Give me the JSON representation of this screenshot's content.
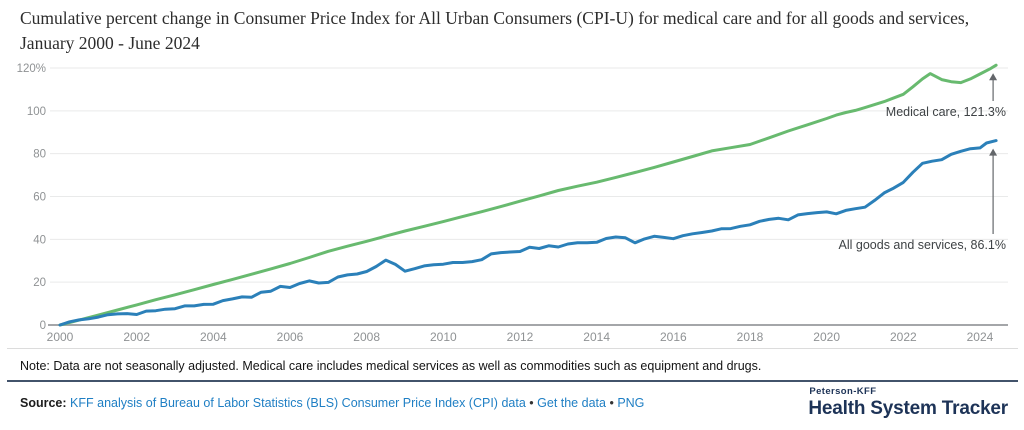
{
  "page_title": "Cumulative percent change in Consumer Price Index for All Urban Consumers (CPI-U) for medical care and for all goods and services, January 2000 - June 2024",
  "chart_data": {
    "type": "line",
    "title": "Cumulative percent change in Consumer Price Index for All Urban Consumers (CPI-U) for medical care and for all goods and services, January 2000 - June 2024",
    "xlim": [
      2000,
      2024.75
    ],
    "ylim": [
      0,
      125
    ],
    "grid": true,
    "legend_position": "end-of-line annotations",
    "x_ticks": [
      2000,
      2002,
      2004,
      2006,
      2008,
      2010,
      2012,
      2014,
      2016,
      2018,
      2020,
      2022,
      2024
    ],
    "y_tick_values": [
      0,
      20,
      40,
      60,
      80,
      100,
      120
    ],
    "y_tick_labels": [
      "0",
      "20",
      "40",
      "60",
      "80",
      "100",
      "120%"
    ],
    "series": [
      {
        "name": "Medical care",
        "color": "#68ba6f",
        "annotation": "Medical care, 121.3%",
        "end_value": 121.3,
        "points": [
          [
            2000,
            0
          ],
          [
            2000.5,
            2.3
          ],
          [
            2001,
            4.6
          ],
          [
            2001.5,
            7.0
          ],
          [
            2002,
            9.4
          ],
          [
            2002.5,
            11.8
          ],
          [
            2003,
            14.1
          ],
          [
            2003.5,
            16.5
          ],
          [
            2004,
            18.9
          ],
          [
            2004.5,
            21.3
          ],
          [
            2005,
            23.7
          ],
          [
            2005.5,
            26.2
          ],
          [
            2006,
            28.7
          ],
          [
            2006.5,
            31.5
          ],
          [
            2007,
            34.4
          ],
          [
            2007.5,
            36.8
          ],
          [
            2008,
            39.1
          ],
          [
            2008.5,
            41.5
          ],
          [
            2009,
            43.9
          ],
          [
            2009.5,
            46.1
          ],
          [
            2010,
            48.3
          ],
          [
            2010.5,
            50.6
          ],
          [
            2011,
            52.9
          ],
          [
            2011.5,
            55.3
          ],
          [
            2012,
            57.8
          ],
          [
            2012.5,
            60.3
          ],
          [
            2013,
            62.8
          ],
          [
            2013.5,
            64.8
          ],
          [
            2014,
            66.7
          ],
          [
            2014.5,
            68.9
          ],
          [
            2015,
            71.2
          ],
          [
            2015.5,
            73.6
          ],
          [
            2016,
            76.1
          ],
          [
            2016.5,
            78.7
          ],
          [
            2017,
            81.3
          ],
          [
            2017.5,
            82.8
          ],
          [
            2018,
            84.3
          ],
          [
            2018.5,
            87.4
          ],
          [
            2019,
            90.6
          ],
          [
            2019.5,
            93.5
          ],
          [
            2020,
            96.4
          ],
          [
            2020.25,
            98.0
          ],
          [
            2020.5,
            99.2
          ],
          [
            2020.75,
            100.2
          ],
          [
            2021,
            101.5
          ],
          [
            2021.5,
            104.3
          ],
          [
            2022,
            107.7
          ],
          [
            2022.25,
            111.2
          ],
          [
            2022.5,
            114.9
          ],
          [
            2022.7,
            117.4
          ],
          [
            2023,
            114.6
          ],
          [
            2023.25,
            113.6
          ],
          [
            2023.5,
            113.2
          ],
          [
            2023.75,
            114.9
          ],
          [
            2024,
            117.2
          ],
          [
            2024.25,
            119.5
          ],
          [
            2024.42,
            121.3
          ]
        ]
      },
      {
        "name": "All goods and services",
        "color": "#2b80b9",
        "annotation": "All goods and services, 86.1%",
        "end_value": 86.1,
        "points": [
          [
            2000,
            0
          ],
          [
            2000.25,
            1.5
          ],
          [
            2000.5,
            2.4
          ],
          [
            2000.75,
            2.9
          ],
          [
            2001,
            3.7
          ],
          [
            2001.25,
            4.8
          ],
          [
            2001.5,
            5.2
          ],
          [
            2001.75,
            5.3
          ],
          [
            2002,
            4.9
          ],
          [
            2002.25,
            6.5
          ],
          [
            2002.5,
            6.7
          ],
          [
            2002.75,
            7.4
          ],
          [
            2003,
            7.6
          ],
          [
            2003.25,
            8.9
          ],
          [
            2003.5,
            8.9
          ],
          [
            2003.75,
            9.6
          ],
          [
            2004,
            9.7
          ],
          [
            2004.25,
            11.4
          ],
          [
            2004.5,
            12.2
          ],
          [
            2004.75,
            13.1
          ],
          [
            2005,
            13.0
          ],
          [
            2005.25,
            15.3
          ],
          [
            2005.5,
            15.8
          ],
          [
            2005.75,
            18.0
          ],
          [
            2006,
            17.5
          ],
          [
            2006.25,
            19.4
          ],
          [
            2006.5,
            20.6
          ],
          [
            2006.75,
            19.6
          ],
          [
            2007,
            19.9
          ],
          [
            2007.25,
            22.4
          ],
          [
            2007.5,
            23.4
          ],
          [
            2007.75,
            23.8
          ],
          [
            2008,
            25.0
          ],
          [
            2008.25,
            27.3
          ],
          [
            2008.5,
            30.3
          ],
          [
            2008.75,
            28.3
          ],
          [
            2009,
            25.1
          ],
          [
            2009.25,
            26.3
          ],
          [
            2009.5,
            27.6
          ],
          [
            2009.75,
            28.1
          ],
          [
            2010,
            28.4
          ],
          [
            2010.25,
            29.2
          ],
          [
            2010.5,
            29.2
          ],
          [
            2010.75,
            29.6
          ],
          [
            2011,
            30.5
          ],
          [
            2011.25,
            33.2
          ],
          [
            2011.5,
            33.8
          ],
          [
            2011.75,
            34.1
          ],
          [
            2012,
            34.3
          ],
          [
            2012.25,
            36.3
          ],
          [
            2012.5,
            35.7
          ],
          [
            2012.75,
            37.0
          ],
          [
            2013,
            36.4
          ],
          [
            2013.25,
            37.8
          ],
          [
            2013.5,
            38.4
          ],
          [
            2013.75,
            38.4
          ],
          [
            2014,
            38.6
          ],
          [
            2014.25,
            40.4
          ],
          [
            2014.5,
            41.1
          ],
          [
            2014.75,
            40.7
          ],
          [
            2015,
            38.4
          ],
          [
            2015.25,
            40.2
          ],
          [
            2015.5,
            41.4
          ],
          [
            2015.75,
            40.9
          ],
          [
            2016,
            40.3
          ],
          [
            2016.25,
            41.7
          ],
          [
            2016.5,
            42.6
          ],
          [
            2016.75,
            43.2
          ],
          [
            2017,
            43.9
          ],
          [
            2017.25,
            44.9
          ],
          [
            2017.5,
            45.0
          ],
          [
            2017.75,
            46.1
          ],
          [
            2018,
            46.8
          ],
          [
            2018.25,
            48.4
          ],
          [
            2018.5,
            49.3
          ],
          [
            2018.75,
            49.8
          ],
          [
            2019,
            49.1
          ],
          [
            2019.25,
            51.4
          ],
          [
            2019.5,
            52.0
          ],
          [
            2019.75,
            52.5
          ],
          [
            2020,
            52.8
          ],
          [
            2020.25,
            51.9
          ],
          [
            2020.5,
            53.5
          ],
          [
            2020.75,
            54.3
          ],
          [
            2021,
            55.0
          ],
          [
            2021.25,
            58.2
          ],
          [
            2021.5,
            61.7
          ],
          [
            2021.75,
            63.9
          ],
          [
            2022,
            66.6
          ],
          [
            2022.25,
            71.3
          ],
          [
            2022.5,
            75.5
          ],
          [
            2022.75,
            76.5
          ],
          [
            2023,
            77.2
          ],
          [
            2023.25,
            79.7
          ],
          [
            2023.5,
            81.1
          ],
          [
            2023.75,
            82.3
          ],
          [
            2024,
            82.7
          ],
          [
            2024.17,
            85.0
          ],
          [
            2024.42,
            86.1
          ]
        ]
      }
    ]
  },
  "note": "Note: Data are not seasonally adjusted. Medical care includes medical services as well as commodities such as equipment and drugs.",
  "source": {
    "label": "Source:",
    "link": "KFF analysis of Bureau of Labor Statistics (BLS) Consumer Price Index (CPI) data",
    "separator": "•",
    "links": [
      "Get the data",
      "PNG"
    ]
  },
  "branding": {
    "line1": "Peterson-KFF",
    "line2": "Health System Tracker"
  },
  "colors": {
    "medical_care_line": "#68ba6f",
    "all_goods_line": "#2b80b9",
    "link_blue": "#1f7fc4",
    "brand_navy": "#1d3357",
    "grid": "#e9eaea",
    "axis": "#a4a6a9"
  }
}
